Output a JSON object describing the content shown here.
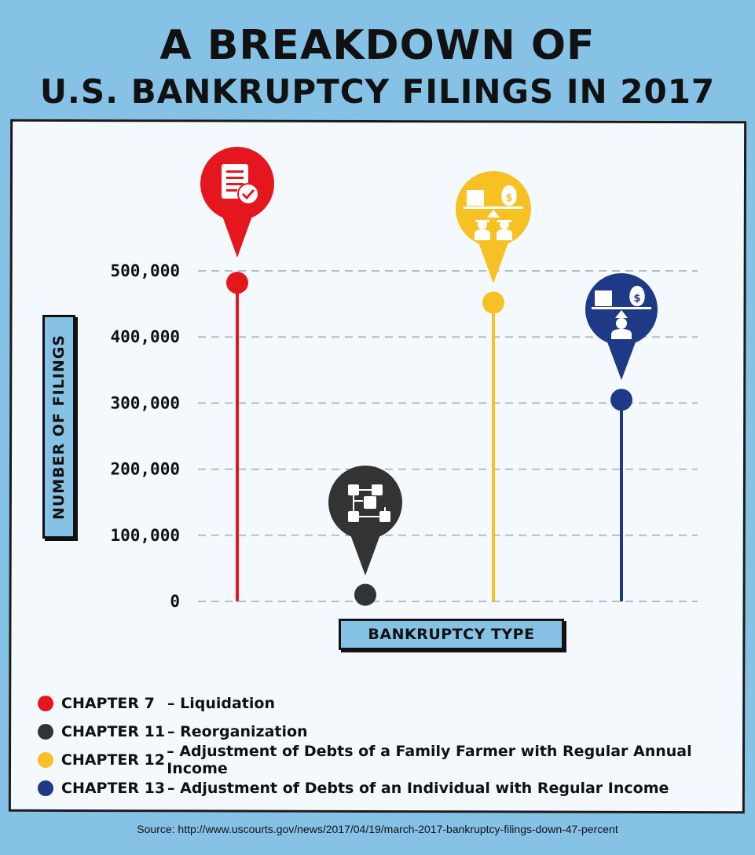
{
  "title": {
    "line1": "A BREAKDOWN OF",
    "line2": "U.S. BANKRUPTCY FILINGS IN 2017"
  },
  "chart_data": {
    "type": "scatter",
    "categories": [
      "CHAPTER 7",
      "CHAPTER 11",
      "CHAPTER 12",
      "CHAPTER 13"
    ],
    "values": [
      482000,
      10000,
      452000,
      305000
    ],
    "colors": [
      "#e5161d",
      "#333333",
      "#f7c123",
      "#1e3a86"
    ],
    "icons": [
      "document-check-icon",
      "org-chart-icon",
      "farmer-scale-icon",
      "individual-scale-icon"
    ],
    "yticks": [
      "0",
      "100,000",
      "200,000",
      "300,000",
      "400,000",
      "500,000"
    ],
    "ylim": [
      0,
      500000
    ],
    "ylabel": "NUMBER OF FILINGS",
    "xlabel": "BANKRUPTCY TYPE",
    "grid": true,
    "legend_position": "bottom-left"
  },
  "legend": [
    {
      "chapter": "CHAPTER 7",
      "desc": "– Liquidation",
      "color": "#e5161d"
    },
    {
      "chapter": "CHAPTER 11",
      "desc": "– Reorganization",
      "color": "#333333"
    },
    {
      "chapter": "CHAPTER 12",
      "desc": "– Adjustment of Debts of a Family Farmer with Regular Annual Income",
      "color": "#f7c123"
    },
    {
      "chapter": "CHAPTER 13",
      "desc": "– Adjustment of Debts of an Individual with Regular Income",
      "color": "#1e3a86"
    }
  ],
  "source": "Source: http://www.uscourts.gov/news/2017/04/19/march-2017-bankruptcy-filings-down-47-percent"
}
